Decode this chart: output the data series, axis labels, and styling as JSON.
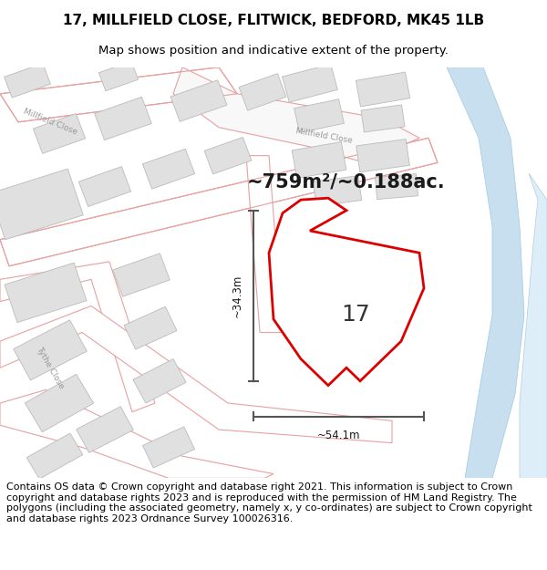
{
  "title_line1": "17, MILLFIELD CLOSE, FLITWICK, BEDFORD, MK45 1LB",
  "title_line2": "Map shows position and indicative extent of the property.",
  "area_text": "~759m²/~0.188ac.",
  "number_label": "17",
  "dim_width": "~54.1m",
  "dim_height": "~34.3m",
  "footer_text": "Contains OS data © Crown copyright and database right 2021. This information is subject to Crown copyright and database rights 2023 and is reproduced with the permission of HM Land Registry. The polygons (including the associated geometry, namely x, y co-ordinates) are subject to Crown copyright and database rights 2023 Ordnance Survey 100026316.",
  "map_bg": "#f7f7f7",
  "road_outline_color": "#e8a0a0",
  "road_fill_color": "#ffffff",
  "plot_outline_color": "#dd0000",
  "building_fill": "#e0e0e0",
  "building_edge": "#bbbbbb",
  "water_color": "#c8dff0",
  "water_edge": "#a0c8e0",
  "dim_line_color": "#555555",
  "street_text_color": "#999999",
  "title_fontsize": 11,
  "subtitle_fontsize": 9.5,
  "footer_fontsize": 8,
  "area_fontsize": 15,
  "number_fontsize": 18
}
